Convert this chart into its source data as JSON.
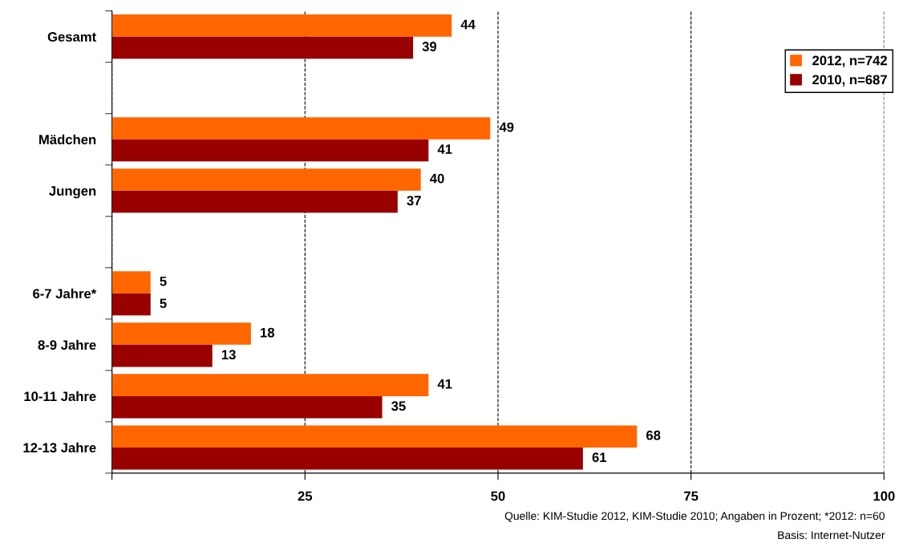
{
  "chart_data": {
    "type": "bar",
    "orientation": "horizontal",
    "categories": [
      "Gesamt",
      null,
      "Mädchen",
      "Jungen",
      null,
      "6-7 Jahre*",
      "8-9 Jahre",
      "10-11 Jahre",
      "12-13 Jahre"
    ],
    "series": [
      {
        "name": "2012, n=742",
        "color": "#ff6600",
        "values": [
          44,
          null,
          49,
          40,
          null,
          5,
          18,
          41,
          68
        ]
      },
      {
        "name": "2010, n=687",
        "color": "#990000",
        "values": [
          39,
          null,
          41,
          37,
          null,
          5,
          13,
          35,
          61
        ]
      }
    ],
    "xlim": [
      0,
      100
    ],
    "xticks": [
      {
        "value": 0,
        "label": null
      },
      25,
      50,
      75,
      100
    ],
    "grid": "x",
    "legend": "top right",
    "data_labels": true,
    "annotations": [
      "Quelle: KIM-Studie 2012, KIM-Studie 2010; Angaben in Prozent; *2012: n=60",
      "Basis: Internet-Nutzer"
    ]
  }
}
